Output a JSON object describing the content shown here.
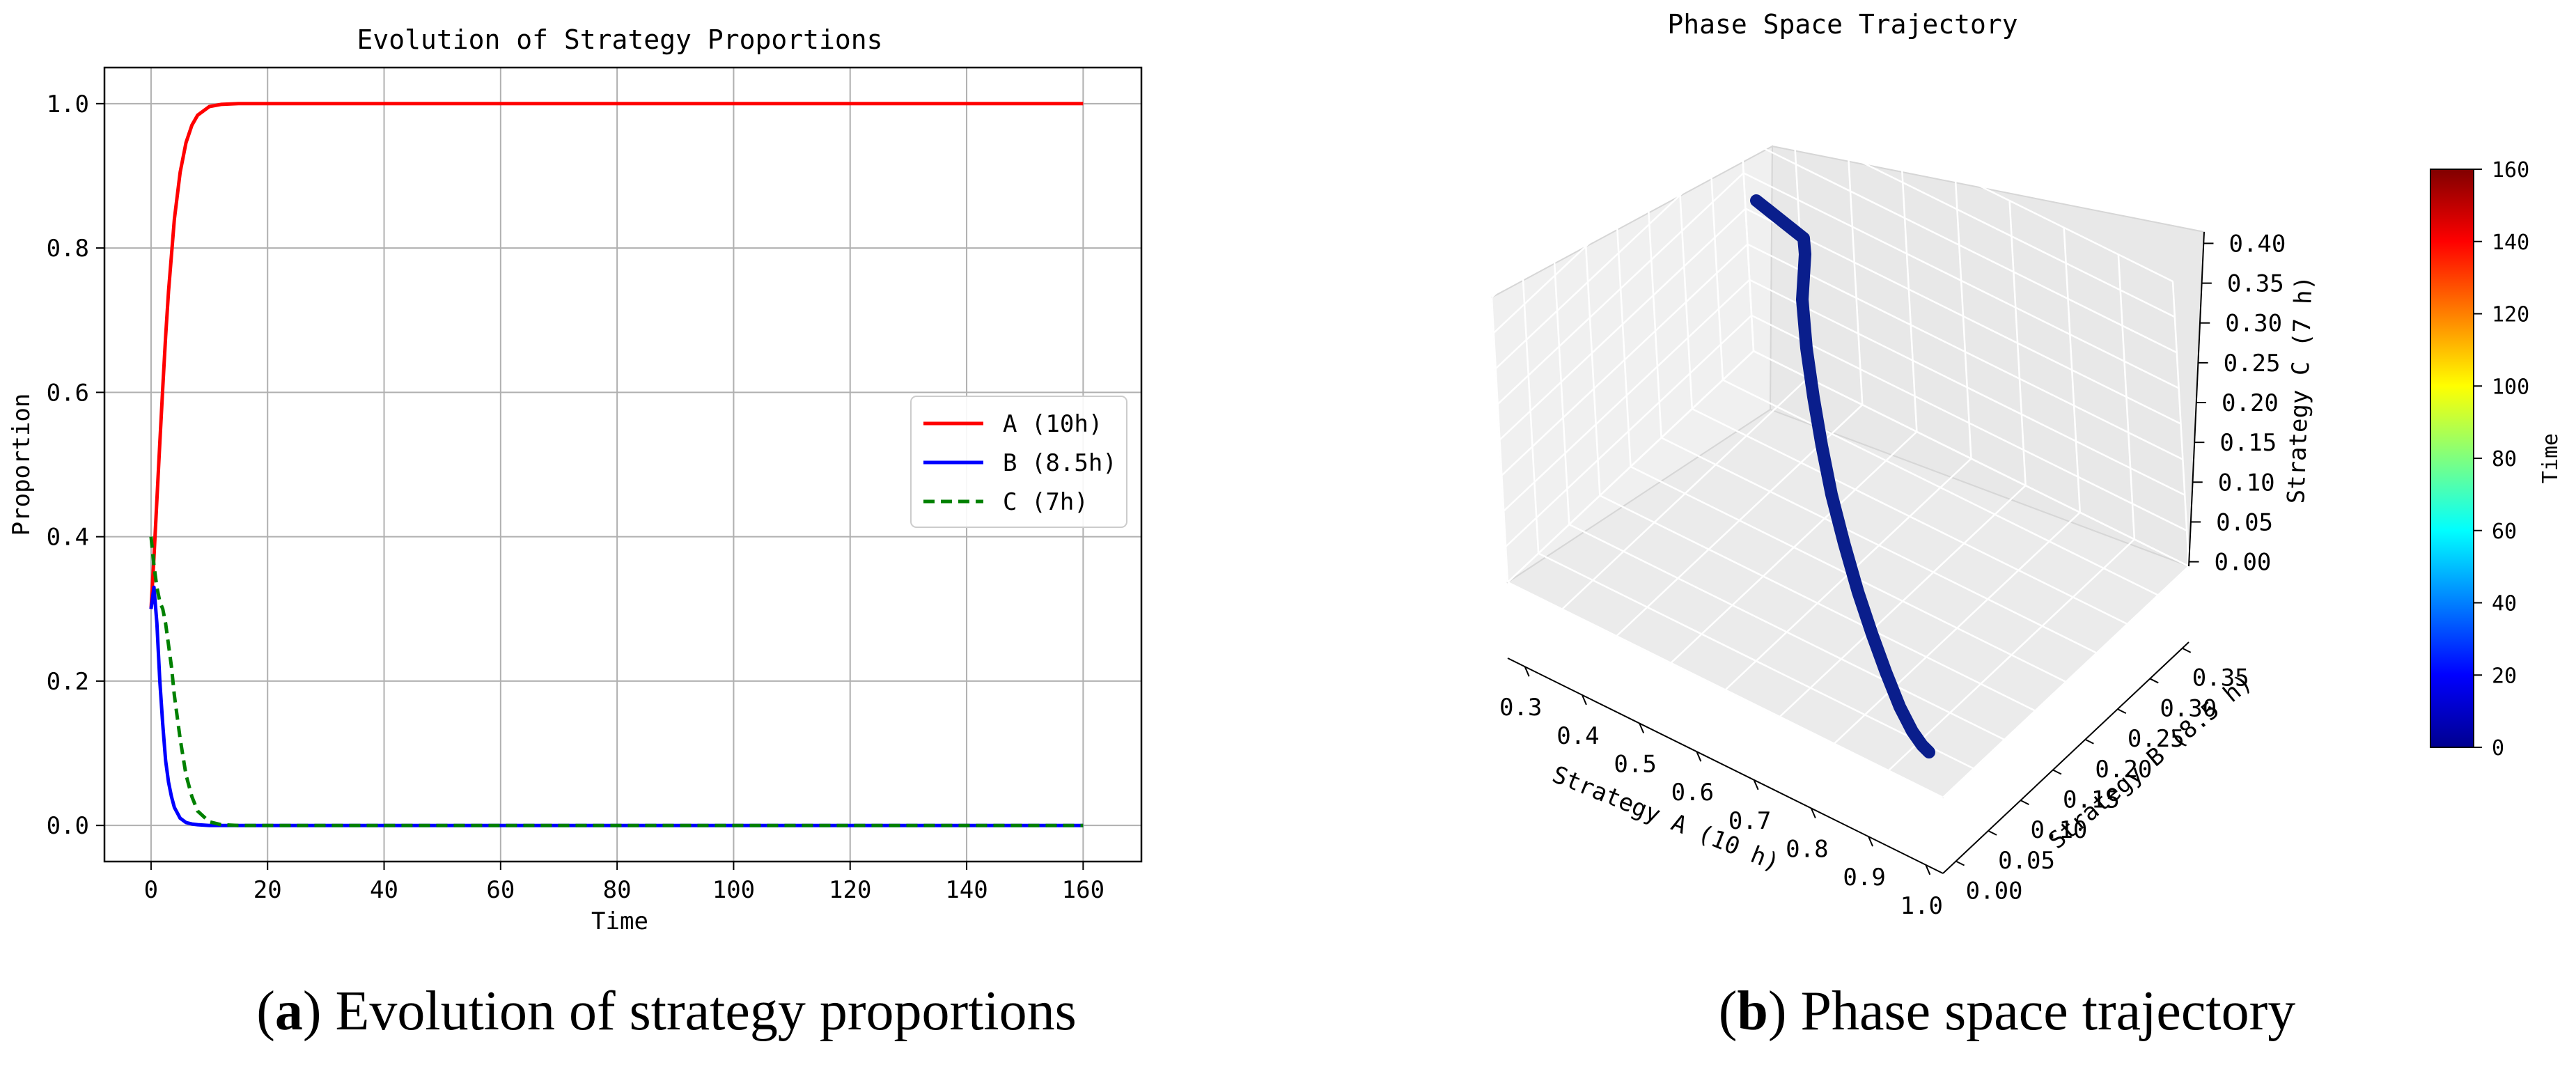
{
  "panels": {
    "a": {
      "caption_letter": "a",
      "caption_text": "Evolution of strategy proportions"
    },
    "b": {
      "caption_letter": "b",
      "caption_text": "Phase space trajectory"
    }
  },
  "chart_data": [
    {
      "type": "line",
      "title": "Evolution of Strategy Proportions",
      "xlabel": "Time",
      "ylabel": "Proportion",
      "xlim": [
        -8,
        170
      ],
      "ylim": [
        -0.05,
        1.05
      ],
      "xticks": [
        0,
        20,
        40,
        60,
        80,
        100,
        120,
        140,
        160
      ],
      "yticks": [
        0.0,
        0.2,
        0.4,
        0.6,
        0.8,
        1.0
      ],
      "grid": true,
      "legend_position": "center-right",
      "series": [
        {
          "name": "A (10h)",
          "color": "#ff0000",
          "style": "solid",
          "x": [
            0,
            0.5,
            1,
            1.5,
            2,
            2.5,
            3,
            3.5,
            4,
            5,
            6,
            7,
            8,
            10,
            12,
            15,
            20,
            30,
            50,
            80,
            100,
            130,
            160
          ],
          "y": [
            0.3,
            0.372,
            0.451,
            0.53,
            0.606,
            0.677,
            0.74,
            0.79,
            0.84,
            0.905,
            0.946,
            0.97,
            0.984,
            0.996,
            0.999,
            1.0,
            1.0,
            1.0,
            1.0,
            1.0,
            1.0,
            1.0,
            1.0
          ]
        },
        {
          "name": "B (8.5h)",
          "color": "#0000ff",
          "style": "solid",
          "x": [
            0,
            0.5,
            1,
            1.5,
            2,
            2.5,
            3,
            3.5,
            4,
            5,
            6,
            7,
            8,
            10,
            12,
            15,
            20,
            30,
            50,
            80,
            100,
            130,
            160
          ],
          "y": [
            0.3,
            0.33,
            0.28,
            0.2,
            0.14,
            0.09,
            0.06,
            0.04,
            0.025,
            0.01,
            0.004,
            0.002,
            0.001,
            0.0,
            0.0,
            0.0,
            0.0,
            0.0,
            0.0,
            0.0,
            0.0,
            0.0,
            0.0
          ]
        },
        {
          "name": "C (7h)",
          "color": "#008000",
          "style": "dashed",
          "x": [
            0,
            0.5,
            1,
            1.5,
            2,
            2.5,
            3,
            3.5,
            4,
            5,
            6,
            7,
            8,
            10,
            12,
            15,
            20,
            30,
            50,
            80,
            100,
            130,
            160
          ],
          "y": [
            0.4,
            0.36,
            0.33,
            0.31,
            0.3,
            0.28,
            0.25,
            0.22,
            0.18,
            0.12,
            0.07,
            0.04,
            0.02,
            0.005,
            0.001,
            0.0,
            0.0,
            0.0,
            0.0,
            0.0,
            0.0,
            0.0,
            0.0
          ]
        }
      ]
    },
    {
      "type": "scatter",
      "title": "Phase Space Trajectory",
      "xlabel": "Strategy A (10 h)",
      "ylabel": "Strategy B (8.5 h)",
      "zlabel": "Strategy C (7 h)",
      "xlim": [
        0.27,
        1.03
      ],
      "ylim": [
        -0.02,
        0.36
      ],
      "zlim": [
        -0.01,
        0.41
      ],
      "xticks": [
        "0.3",
        "0.4",
        "0.5",
        "0.6",
        "0.7",
        "0.8",
        "0.9",
        "1.0"
      ],
      "yticks": [
        "0.00",
        "0.05",
        "0.10",
        "0.15",
        "0.20",
        "0.25",
        "0.30",
        "0.35"
      ],
      "zticks": [
        "0.00",
        "0.05",
        "0.10",
        "0.15",
        "0.20",
        "0.25",
        "0.30",
        "0.35",
        "0.40"
      ],
      "grid": true,
      "trajectory": {
        "color": "#0a1e8c",
        "x": [
          0.3,
          0.32,
          0.35,
          0.4,
          0.45,
          0.5,
          0.55,
          0.6,
          0.65,
          0.7,
          0.75,
          0.8,
          0.85,
          0.9,
          0.95,
          1.0
        ],
        "y": [
          0.3,
          0.33,
          0.3,
          0.25,
          0.21,
          0.17,
          0.14,
          0.11,
          0.085,
          0.062,
          0.045,
          0.03,
          0.018,
          0.009,
          0.003,
          0.0
        ],
        "z": [
          0.4,
          0.36,
          0.33,
          0.3,
          0.28,
          0.26,
          0.24,
          0.21,
          0.18,
          0.15,
          0.12,
          0.09,
          0.06,
          0.035,
          0.015,
          0.0
        ]
      },
      "colorbar": {
        "label": "Time",
        "range": [
          0,
          160
        ],
        "ticks": [
          "0",
          "20",
          "40",
          "60",
          "80",
          "100",
          "120",
          "140",
          "160"
        ],
        "colormap": "jet"
      }
    }
  ]
}
